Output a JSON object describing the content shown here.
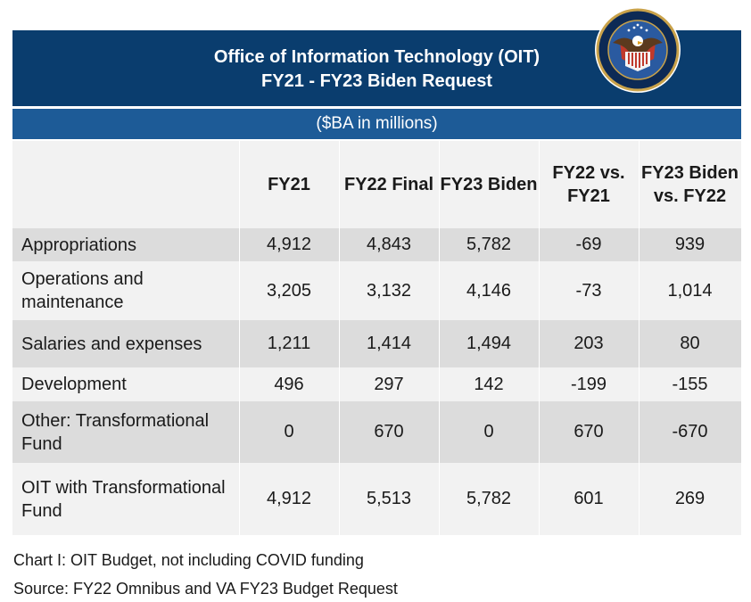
{
  "title_line1": "Office of Information Technology (OIT)",
  "title_line2": "FY21 - FY23 Biden Request",
  "subtitle": "($BA in millions)",
  "seal": {
    "icon": "va-department-seal-icon",
    "text": "DEPARTMENT OF VETERANS AFFAIRS · UNITED STATES OF AMERICA"
  },
  "colors": {
    "header_bg": "#0a3d6e",
    "subheader_bg": "#1d5b97",
    "row_shade": "#dcdcdc",
    "row_light": "#f2f2f2"
  },
  "chart_data": {
    "type": "table",
    "columns": [
      "",
      "FY21",
      "FY22 Final",
      "FY23 Biden",
      "FY22 vs. FY21",
      "FY23 Biden vs. FY22"
    ],
    "rows": [
      {
        "label": "Appropriations",
        "values": [
          "4,912",
          "4,843",
          "5,782",
          "-69",
          "939"
        ]
      },
      {
        "label": "Operations and maintenance",
        "values": [
          "3,205",
          "3,132",
          "4,146",
          "-73",
          "1,014"
        ]
      },
      {
        "label": "Salaries and expenses",
        "values": [
          "1,211",
          "1,414",
          "1,494",
          "203",
          "80"
        ]
      },
      {
        "label": "Development",
        "values": [
          "496",
          "297",
          "142",
          "-199",
          "-155"
        ]
      },
      {
        "label": "Other: Transformational Fund",
        "values": [
          "0",
          "670",
          "0",
          "670",
          "-670"
        ]
      },
      {
        "label": "OIT with Transformational Fund",
        "values": [
          "4,912",
          "5,513",
          "5,782",
          "601",
          "269"
        ]
      }
    ]
  },
  "caption": "Chart I: OIT Budget, not including COVID funding",
  "source": "Source: FY22 Omnibus and VA FY23 Budget Request"
}
